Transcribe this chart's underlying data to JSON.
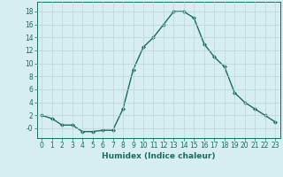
{
  "x": [
    0,
    1,
    2,
    3,
    4,
    5,
    6,
    7,
    8,
    9,
    10,
    11,
    12,
    13,
    14,
    15,
    16,
    17,
    18,
    19,
    20,
    21,
    22,
    23
  ],
  "y": [
    2,
    1.5,
    0.5,
    0.5,
    -0.5,
    -0.5,
    -0.3,
    -0.3,
    3,
    9,
    12.5,
    14,
    16,
    18,
    18,
    17,
    13,
    11,
    9.5,
    5.5,
    4,
    3,
    2,
    1
  ],
  "line_color": "#1a6b5a",
  "marker": "D",
  "marker_size": 2.0,
  "bg_color": "#d6eef0",
  "grid_color": "#b8d4d8",
  "xlabel": "Humidex (Indice chaleur)",
  "xlim": [
    -0.5,
    23.5
  ],
  "ylim": [
    -1.5,
    19.5
  ],
  "yticks": [
    0,
    2,
    4,
    6,
    8,
    10,
    12,
    14,
    16,
    18
  ],
  "ytick_labels": [
    "-0",
    "2",
    "4",
    "6",
    "8",
    "10",
    "12",
    "14",
    "16",
    "18"
  ],
  "xticks": [
    0,
    1,
    2,
    3,
    4,
    5,
    6,
    7,
    8,
    9,
    10,
    11,
    12,
    13,
    14,
    15,
    16,
    17,
    18,
    19,
    20,
    21,
    22,
    23
  ],
  "xlabel_fontsize": 6.5,
  "tick_fontsize": 5.5,
  "linewidth": 1.0
}
